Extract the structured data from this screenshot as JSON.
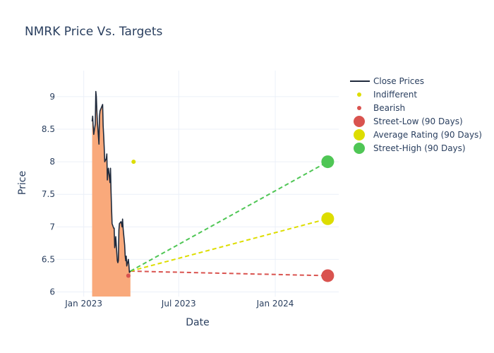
{
  "chart_data": {
    "type": "line",
    "title": "NMRK Price Vs. Targets",
    "xlabel": "Date",
    "ylabel": "Price",
    "x_range": [
      "2022-11-10",
      "2024-05-01"
    ],
    "ylim": [
      5.93,
      9.4
    ],
    "x_ticks": [
      {
        "date": "2023-01-01",
        "label": "Jan 2023"
      },
      {
        "date": "2023-07-01",
        "label": "Jul 2023"
      },
      {
        "date": "2024-01-01",
        "label": "Jan 2024"
      }
    ],
    "y_ticks": [
      {
        "value": 6,
        "label": "6"
      },
      {
        "value": 6.5,
        "label": "6.5"
      },
      {
        "value": 7,
        "label": "7"
      },
      {
        "value": 7.5,
        "label": "7.5"
      },
      {
        "value": 8,
        "label": "8"
      },
      {
        "value": 8.5,
        "label": "8.5"
      },
      {
        "value": 9,
        "label": "9"
      }
    ],
    "grid": true,
    "legend_position": "top-right",
    "colors": {
      "close": "#1f2a3c",
      "area_fill": "#f9a97b",
      "indifferent": "#dddd00",
      "bearish": "#d9534f",
      "street_low": "#d9534f",
      "average": "#dddd00",
      "street_high": "#4fc655"
    },
    "close_prices": {
      "name": "Close Prices",
      "points": [
        [
          "2023-01-17",
          8.62
        ],
        [
          "2023-01-18",
          8.7
        ],
        [
          "2023-01-19",
          8.55
        ],
        [
          "2023-01-20",
          8.42
        ],
        [
          "2023-01-23",
          8.58
        ],
        [
          "2023-01-24",
          9.08
        ],
        [
          "2023-01-25",
          9.0
        ],
        [
          "2023-01-26",
          8.78
        ],
        [
          "2023-01-27",
          8.62
        ],
        [
          "2023-01-30",
          8.27
        ],
        [
          "2023-01-31",
          8.7
        ],
        [
          "2023-02-01",
          8.78
        ],
        [
          "2023-02-02",
          8.8
        ],
        [
          "2023-02-03",
          8.82
        ],
        [
          "2023-02-06",
          8.88
        ],
        [
          "2023-02-07",
          8.55
        ],
        [
          "2023-02-08",
          8.4
        ],
        [
          "2023-02-09",
          8.22
        ],
        [
          "2023-02-10",
          8.0
        ],
        [
          "2023-02-13",
          8.05
        ],
        [
          "2023-02-14",
          8.12
        ],
        [
          "2023-02-15",
          7.72
        ],
        [
          "2023-02-16",
          7.85
        ],
        [
          "2023-02-17",
          7.9
        ],
        [
          "2023-02-20",
          7.68
        ],
        [
          "2023-02-21",
          7.9
        ],
        [
          "2023-02-22",
          7.55
        ],
        [
          "2023-02-23",
          7.28
        ],
        [
          "2023-02-24",
          7.05
        ],
        [
          "2023-02-27",
          6.98
        ],
        [
          "2023-02-28",
          6.98
        ],
        [
          "2023-03-01",
          6.68
        ],
        [
          "2023-03-02",
          6.72
        ],
        [
          "2023-03-03",
          6.85
        ],
        [
          "2023-03-06",
          6.48
        ],
        [
          "2023-03-07",
          6.45
        ],
        [
          "2023-03-08",
          6.48
        ],
        [
          "2023-03-09",
          6.95
        ],
        [
          "2023-03-10",
          7.05
        ],
        [
          "2023-03-13",
          7.08
        ],
        [
          "2023-03-14",
          7.05
        ],
        [
          "2023-03-15",
          7.0
        ],
        [
          "2023-03-16",
          7.12
        ],
        [
          "2023-03-17",
          6.98
        ],
        [
          "2023-03-20",
          6.72
        ],
        [
          "2023-03-21",
          6.55
        ],
        [
          "2023-03-22",
          6.48
        ],
        [
          "2023-03-23",
          6.55
        ],
        [
          "2023-03-24",
          6.4
        ],
        [
          "2023-03-27",
          6.5
        ],
        [
          "2023-03-28",
          6.42
        ],
        [
          "2023-03-29",
          6.3
        ],
        [
          "2023-03-31",
          6.32
        ]
      ]
    },
    "indifferent": {
      "name": "Indifferent",
      "points": [
        [
          "2023-04-06",
          8.0
        ]
      ]
    },
    "bearish": {
      "name": "Bearish",
      "points": [
        [
          "2023-03-27",
          6.25
        ]
      ]
    },
    "street_low": {
      "name": "Street-Low (90 Days)",
      "date": "2024-04-10",
      "value": 6.25
    },
    "average_rating": {
      "name": "Average Rating (90 Days)",
      "date": "2024-04-10",
      "value": 7.125
    },
    "street_high": {
      "name": "Street-High (90 Days)",
      "date": "2024-04-10",
      "value": 8.0
    },
    "projection_start": {
      "date": "2023-03-31",
      "value": 6.32
    }
  }
}
